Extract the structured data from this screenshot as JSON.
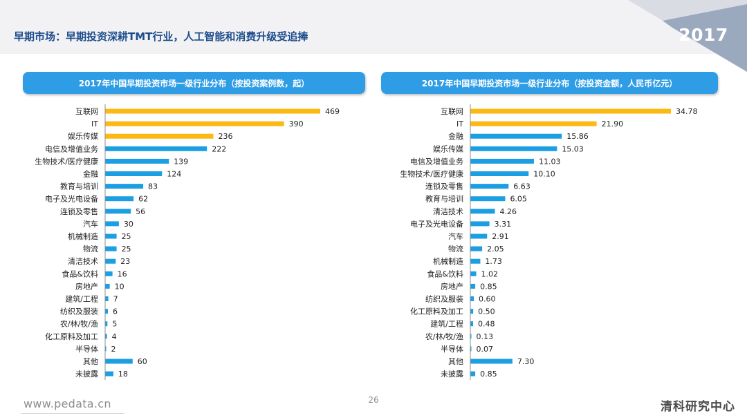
{
  "page": {
    "title": "早期市场：早期投资深耕TMT行业，人工智能和消费升级受追捧",
    "year_badge": "2017",
    "footer_url": "www.pedata.cn",
    "page_number": "26",
    "brand": "清科研究中心"
  },
  "colors": {
    "highlight_bar": "#fdb913",
    "normal_bar": "#1c9ee3",
    "panel_header": "#2e9de6",
    "title_text": "#1d4c8c"
  },
  "chart_data": [
    {
      "type": "bar",
      "orientation": "horizontal",
      "title": "2017年中国早期投资市场一级行业分布（按投资案例数，起）",
      "categories": [
        "互联网",
        "IT",
        "娱乐传媒",
        "电信及增值业务",
        "生物技术/医疗健康",
        "金融",
        "教育与培训",
        "电子及光电设备",
        "连锁及零售",
        "汽车",
        "机械制造",
        "物流",
        "清洁技术",
        "食品&饮料",
        "房地产",
        "建筑/工程",
        "纺织及服装",
        "农/林/牧/渔",
        "化工原料及加工",
        "半导体",
        "其他",
        "未披露"
      ],
      "values": [
        469,
        390,
        236,
        222,
        139,
        124,
        83,
        62,
        56,
        30,
        25,
        25,
        23,
        16,
        10,
        7,
        6,
        5,
        4,
        2,
        60,
        18
      ],
      "labels": [
        "469",
        "390",
        "236",
        "222",
        "139",
        "124",
        "83",
        "62",
        "56",
        "30",
        "25",
        "25",
        "23",
        "16",
        "10",
        "7",
        "6",
        "5",
        "4",
        "2",
        "60",
        "18"
      ],
      "highlight_count": 3,
      "xlim": [
        0,
        469
      ]
    },
    {
      "type": "bar",
      "orientation": "horizontal",
      "title": "2017年中国早期投资市场一级行业分布（按投资金额，人民币亿元）",
      "categories": [
        "互联网",
        "IT",
        "金融",
        "娱乐传媒",
        "电信及增值业务",
        "生物技术/医疗健康",
        "连锁及零售",
        "教育与培训",
        "清洁技术",
        "电子及光电设备",
        "汽车",
        "物流",
        "机械制造",
        "食品&饮料",
        "房地产",
        "纺织及服装",
        "化工原料及加工",
        "建筑/工程",
        "农/林/牧/渔",
        "半导体",
        "其他",
        "未披露"
      ],
      "values": [
        34.78,
        21.9,
        15.86,
        15.03,
        11.03,
        10.1,
        6.63,
        6.05,
        4.26,
        3.31,
        2.91,
        2.05,
        1.73,
        1.02,
        0.85,
        0.6,
        0.5,
        0.48,
        0.13,
        0.07,
        7.3,
        0.85
      ],
      "labels": [
        "34.78",
        "21.90",
        "15.86",
        "15.03",
        "11.03",
        "10.10",
        "6.63",
        "6.05",
        "4.26",
        "3.31",
        "2.91",
        "2.05",
        "1.73",
        "1.02",
        "0.85",
        "0.60",
        "0.50",
        "0.48",
        "0.13",
        "0.07",
        "7.30",
        "0.85"
      ],
      "highlight_count": 2,
      "xlim": [
        0,
        34.78
      ]
    }
  ]
}
